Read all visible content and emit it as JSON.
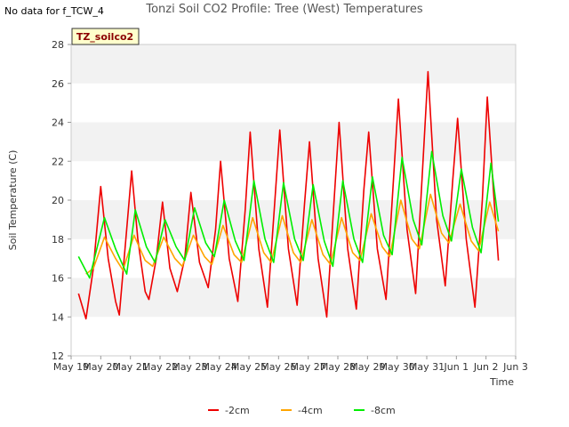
{
  "header": {
    "no_data_note": "No data for f_TCW_4",
    "title": "Tonzi Soil CO2 Profile: Tree (West) Temperatures"
  },
  "badge": {
    "label": "TZ_soilco2"
  },
  "colors": {
    "series_2cm": "#ee0000",
    "series_4cm": "#ffa500",
    "series_8cm": "#00ee00",
    "band": "#f2f2f2",
    "badge_bg": "#ffffcc"
  },
  "chart_data": {
    "type": "line",
    "title": "Tonzi Soil CO2 Profile: Tree (West) Temperatures",
    "xlabel": "Time",
    "ylabel": "Soil Temperature (C)",
    "ylim": [
      12,
      28
    ],
    "xlim": [
      "2024-05-19",
      "2024-06-03"
    ],
    "x_tick_labels": [
      "May 19",
      "May 20",
      "May 21",
      "May 22",
      "May 23",
      "May 24",
      "May 25",
      "May 26",
      "May 27",
      "May 28",
      "May 29",
      "May 30",
      "May 31",
      "Jun 1",
      "Jun 2",
      "Jun 3"
    ],
    "y_tick_labels": [
      "12",
      "14",
      "16",
      "18",
      "20",
      "22",
      "24",
      "26",
      "28"
    ],
    "y_ticks": [
      12,
      14,
      16,
      18,
      20,
      22,
      24,
      26,
      28
    ],
    "grid": "alternating horizontal bands",
    "legend_position": "bottom-center",
    "series": [
      {
        "name": "-2cm",
        "color": "#ee0000",
        "values": [
          [
            "2024-05-19T06:00",
            15.2
          ],
          [
            "2024-05-19T12:00",
            13.9
          ],
          [
            "2024-05-19T18:00",
            16.5
          ],
          [
            "2024-05-20T00:00",
            20.7
          ],
          [
            "2024-05-20T06:00",
            17.0
          ],
          [
            "2024-05-20T12:00",
            14.8
          ],
          [
            "2024-05-20T15:00",
            14.1
          ],
          [
            "2024-05-20T21:00",
            18.5
          ],
          [
            "2024-05-21T01:00",
            21.5
          ],
          [
            "2024-05-21T06:00",
            18.0
          ],
          [
            "2024-05-21T12:00",
            15.3
          ],
          [
            "2024-05-21T15:00",
            14.9
          ],
          [
            "2024-05-21T21:00",
            17.0
          ],
          [
            "2024-05-22T02:00",
            19.9
          ],
          [
            "2024-05-22T08:00",
            16.5
          ],
          [
            "2024-05-22T14:00",
            15.3
          ],
          [
            "2024-05-22T20:00",
            17.0
          ],
          [
            "2024-05-23T01:00",
            20.4
          ],
          [
            "2024-05-23T08:00",
            16.8
          ],
          [
            "2024-05-23T15:00",
            15.5
          ],
          [
            "2024-05-23T21:00",
            18.5
          ],
          [
            "2024-05-24T01:00",
            22.0
          ],
          [
            "2024-05-24T08:00",
            17.0
          ],
          [
            "2024-05-24T15:00",
            14.8
          ],
          [
            "2024-05-24T21:00",
            19.5
          ],
          [
            "2024-05-25T01:00",
            23.5
          ],
          [
            "2024-05-25T08:00",
            17.5
          ],
          [
            "2024-05-25T15:00",
            14.5
          ],
          [
            "2024-05-25T21:00",
            20.0
          ],
          [
            "2024-05-26T01:00",
            23.6
          ],
          [
            "2024-05-26T08:00",
            17.5
          ],
          [
            "2024-05-26T15:00",
            14.6
          ],
          [
            "2024-05-26T21:00",
            19.8
          ],
          [
            "2024-05-27T01:00",
            23.0
          ],
          [
            "2024-05-27T08:00",
            17.0
          ],
          [
            "2024-05-27T15:00",
            14.0
          ],
          [
            "2024-05-27T21:00",
            20.0
          ],
          [
            "2024-05-28T01:00",
            24.0
          ],
          [
            "2024-05-28T08:00",
            17.5
          ],
          [
            "2024-05-28T15:00",
            14.4
          ],
          [
            "2024-05-28T21:00",
            20.5
          ],
          [
            "2024-05-29T01:00",
            23.5
          ],
          [
            "2024-05-29T08:00",
            17.5
          ],
          [
            "2024-05-29T15:00",
            14.9
          ],
          [
            "2024-05-29T21:00",
            21.0
          ],
          [
            "2024-05-30T01:00",
            25.2
          ],
          [
            "2024-05-30T08:00",
            18.5
          ],
          [
            "2024-05-30T15:00",
            15.2
          ],
          [
            "2024-05-30T21:00",
            22.0
          ],
          [
            "2024-05-31T01:00",
            26.6
          ],
          [
            "2024-05-31T08:00",
            19.0
          ],
          [
            "2024-05-31T15:00",
            15.6
          ],
          [
            "2024-05-31T21:00",
            21.0
          ],
          [
            "2024-06-01T01:00",
            24.2
          ],
          [
            "2024-06-01T08:00",
            18.0
          ],
          [
            "2024-06-01T15:00",
            14.5
          ],
          [
            "2024-06-01T21:00",
            20.0
          ],
          [
            "2024-06-02T01:00",
            25.3
          ],
          [
            "2024-06-02T06:00",
            20.5
          ],
          [
            "2024-06-02T10:00",
            16.9
          ]
        ]
      },
      {
        "name": "-4cm",
        "color": "#ffa500",
        "values": [
          [
            "2024-05-19T12:00",
            16.2
          ],
          [
            "2024-05-19T18:00",
            16.5
          ],
          [
            "2024-05-20T03:00",
            18.1
          ],
          [
            "2024-05-20T12:00",
            17.0
          ],
          [
            "2024-05-20T18:00",
            16.4
          ],
          [
            "2024-05-21T03:00",
            18.2
          ],
          [
            "2024-05-21T12:00",
            16.9
          ],
          [
            "2024-05-21T18:00",
            16.6
          ],
          [
            "2024-05-22T03:00",
            18.1
          ],
          [
            "2024-05-22T12:00",
            17.0
          ],
          [
            "2024-05-22T18:00",
            16.6
          ],
          [
            "2024-05-23T03:00",
            18.2
          ],
          [
            "2024-05-23T12:00",
            17.1
          ],
          [
            "2024-05-23T18:00",
            16.7
          ],
          [
            "2024-05-24T03:00",
            18.7
          ],
          [
            "2024-05-24T12:00",
            17.2
          ],
          [
            "2024-05-24T18:00",
            16.8
          ],
          [
            "2024-05-25T03:00",
            19.1
          ],
          [
            "2024-05-25T12:00",
            17.3
          ],
          [
            "2024-05-25T18:00",
            16.8
          ],
          [
            "2024-05-26T03:00",
            19.2
          ],
          [
            "2024-05-26T12:00",
            17.3
          ],
          [
            "2024-05-26T18:00",
            16.8
          ],
          [
            "2024-05-27T03:00",
            19.0
          ],
          [
            "2024-05-27T12:00",
            17.2
          ],
          [
            "2024-05-27T18:00",
            16.7
          ],
          [
            "2024-05-28T03:00",
            19.1
          ],
          [
            "2024-05-28T12:00",
            17.3
          ],
          [
            "2024-05-28T18:00",
            16.9
          ],
          [
            "2024-05-29T03:00",
            19.3
          ],
          [
            "2024-05-29T12:00",
            17.6
          ],
          [
            "2024-05-29T18:00",
            17.1
          ],
          [
            "2024-05-30T03:00",
            20.0
          ],
          [
            "2024-05-30T12:00",
            18.0
          ],
          [
            "2024-05-30T18:00",
            17.5
          ],
          [
            "2024-05-31T03:00",
            20.3
          ],
          [
            "2024-05-31T12:00",
            18.3
          ],
          [
            "2024-05-31T18:00",
            17.8
          ],
          [
            "2024-06-01T03:00",
            19.8
          ],
          [
            "2024-06-01T12:00",
            17.9
          ],
          [
            "2024-06-01T18:00",
            17.4
          ],
          [
            "2024-06-02T03:00",
            19.9
          ],
          [
            "2024-06-02T10:00",
            18.4
          ]
        ]
      },
      {
        "name": "-8cm",
        "color": "#00ee00",
        "values": [
          [
            "2024-05-19T06:00",
            17.1
          ],
          [
            "2024-05-19T15:00",
            16.0
          ],
          [
            "2024-05-20T03:00",
            19.1
          ],
          [
            "2024-05-20T12:00",
            17.5
          ],
          [
            "2024-05-20T21:00",
            16.2
          ],
          [
            "2024-05-21T04:00",
            19.5
          ],
          [
            "2024-05-21T13:00",
            17.6
          ],
          [
            "2024-05-21T20:00",
            16.8
          ],
          [
            "2024-05-22T04:00",
            19.0
          ],
          [
            "2024-05-22T13:00",
            17.6
          ],
          [
            "2024-05-22T20:00",
            16.9
          ],
          [
            "2024-05-23T04:00",
            19.6
          ],
          [
            "2024-05-23T13:00",
            17.8
          ],
          [
            "2024-05-23T20:00",
            17.1
          ],
          [
            "2024-05-24T04:00",
            20.0
          ],
          [
            "2024-05-24T13:00",
            17.9
          ],
          [
            "2024-05-24T20:00",
            16.9
          ],
          [
            "2024-05-25T04:00",
            21.0
          ],
          [
            "2024-05-25T13:00",
            18.0
          ],
          [
            "2024-05-25T20:00",
            16.8
          ],
          [
            "2024-05-26T04:00",
            20.9
          ],
          [
            "2024-05-26T13:00",
            18.0
          ],
          [
            "2024-05-26T20:00",
            16.9
          ],
          [
            "2024-05-27T04:00",
            20.8
          ],
          [
            "2024-05-27T13:00",
            17.9
          ],
          [
            "2024-05-27T20:00",
            16.6
          ],
          [
            "2024-05-28T04:00",
            21.0
          ],
          [
            "2024-05-28T13:00",
            18.0
          ],
          [
            "2024-05-28T20:00",
            16.8
          ],
          [
            "2024-05-29T04:00",
            21.2
          ],
          [
            "2024-05-29T13:00",
            18.2
          ],
          [
            "2024-05-29T20:00",
            17.2
          ],
          [
            "2024-05-30T04:00",
            22.2
          ],
          [
            "2024-05-30T13:00",
            19.0
          ],
          [
            "2024-05-30T20:00",
            17.7
          ],
          [
            "2024-05-31T04:00",
            22.5
          ],
          [
            "2024-05-31T13:00",
            19.2
          ],
          [
            "2024-05-31T20:00",
            17.9
          ],
          [
            "2024-06-01T04:00",
            21.6
          ],
          [
            "2024-06-01T13:00",
            18.6
          ],
          [
            "2024-06-01T20:00",
            17.3
          ],
          [
            "2024-06-02T04:00",
            21.9
          ],
          [
            "2024-06-02T10:00",
            18.9
          ]
        ]
      }
    ]
  }
}
